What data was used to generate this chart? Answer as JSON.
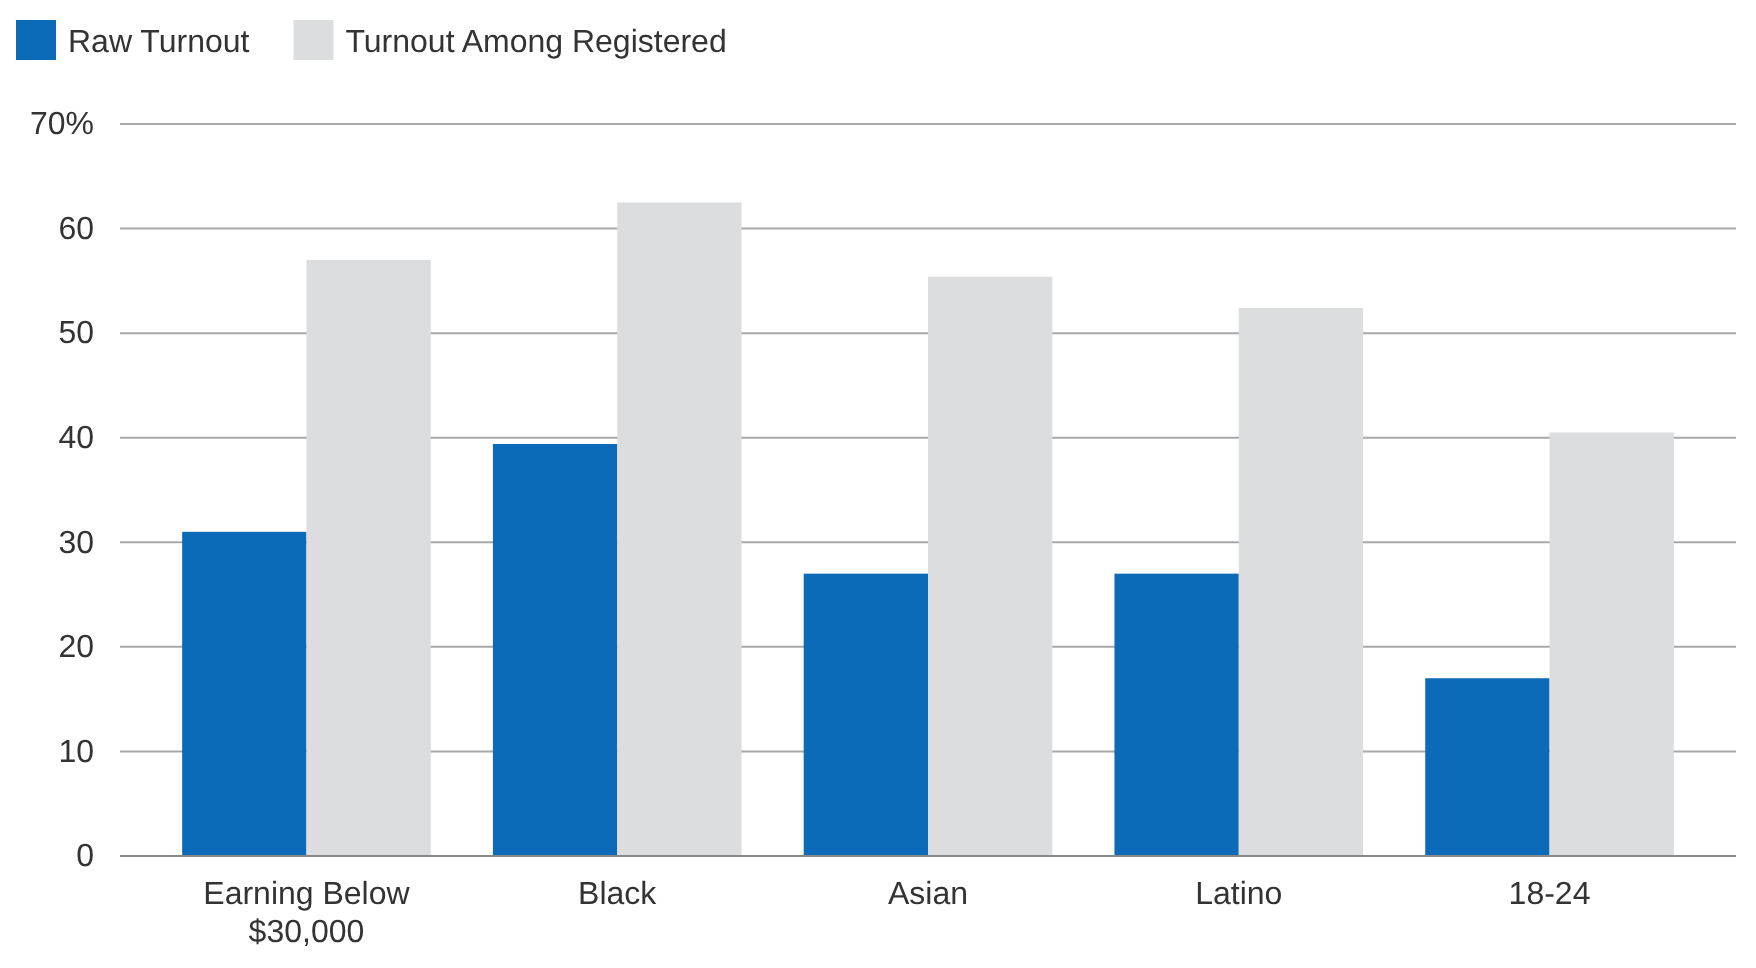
{
  "chart_data": {
    "type": "bar",
    "categories": [
      "Earning Below $30,000",
      "Black",
      "Asian",
      "Latino",
      "18-24"
    ],
    "series": [
      {
        "name": "Raw Turnout",
        "color": "#0b6bb8",
        "values": [
          31.0,
          39.4,
          27.0,
          27.0,
          17.0
        ]
      },
      {
        "name": "Turnout Among Registered",
        "color": "#dcddde",
        "values": [
          57.0,
          62.5,
          55.4,
          52.4,
          40.5
        ]
      }
    ],
    "ylim": [
      0,
      70
    ],
    "yticks": [
      0,
      10,
      20,
      30,
      40,
      50,
      60,
      {
        "value": 70,
        "label": "70%"
      }
    ],
    "grid": "y",
    "legend": "top left"
  }
}
